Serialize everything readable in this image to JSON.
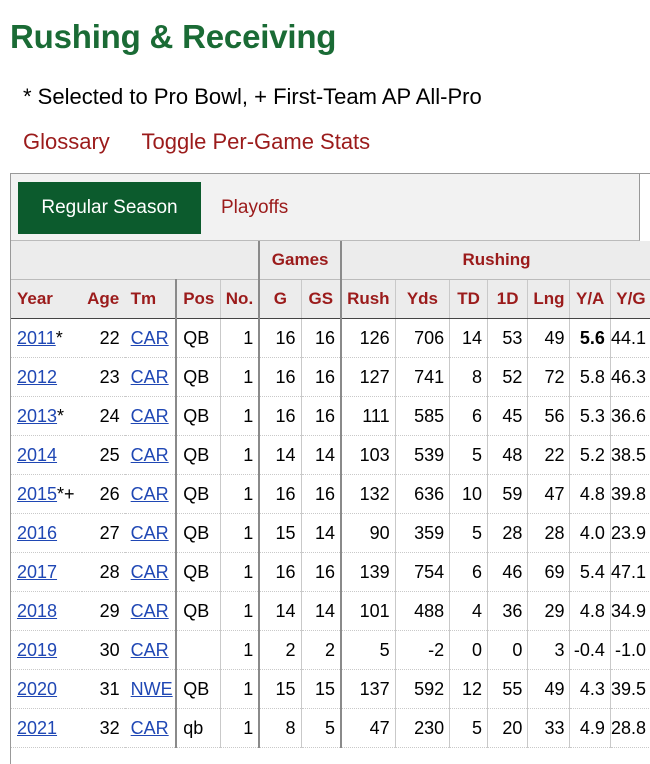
{
  "page": {
    "title": "Rushing & Receiving",
    "note": "* Selected to Pro Bowl, + First-Team AP All-Pro",
    "links": [
      "Glossary",
      "Toggle Per-Game Stats"
    ]
  },
  "tabs": {
    "regular": "Regular Season",
    "playoffs": "Playoffs"
  },
  "table": {
    "over_headers": {
      "games": "Games",
      "rushing": "Rushing"
    },
    "headers": [
      "Year",
      "Age",
      "Tm",
      "Pos",
      "No.",
      "G",
      "GS",
      "Rush",
      "Yds",
      "TD",
      "1D",
      "Lng",
      "Y/A",
      "Y/G"
    ],
    "rows": [
      {
        "year": "2011",
        "mark": "*",
        "age": "22",
        "tm": "CAR",
        "pos": "QB",
        "no": "1",
        "g": "16",
        "gs": "16",
        "rush": "126",
        "yds": "706",
        "td": "14",
        "fd": "53",
        "lng": "49",
        "ya": "5.6",
        "yg": "44.1"
      },
      {
        "year": "2012",
        "mark": "",
        "age": "23",
        "tm": "CAR",
        "pos": "QB",
        "no": "1",
        "g": "16",
        "gs": "16",
        "rush": "127",
        "yds": "741",
        "td": "8",
        "fd": "52",
        "lng": "72",
        "ya": "5.8",
        "yg": "46.3"
      },
      {
        "year": "2013",
        "mark": "*",
        "age": "24",
        "tm": "CAR",
        "pos": "QB",
        "no": "1",
        "g": "16",
        "gs": "16",
        "rush": "111",
        "yds": "585",
        "td": "6",
        "fd": "45",
        "lng": "56",
        "ya": "5.3",
        "yg": "36.6"
      },
      {
        "year": "2014",
        "mark": "",
        "age": "25",
        "tm": "CAR",
        "pos": "QB",
        "no": "1",
        "g": "14",
        "gs": "14",
        "rush": "103",
        "yds": "539",
        "td": "5",
        "fd": "48",
        "lng": "22",
        "ya": "5.2",
        "yg": "38.5"
      },
      {
        "year": "2015",
        "mark": "*+",
        "age": "26",
        "tm": "CAR",
        "pos": "QB",
        "no": "1",
        "g": "16",
        "gs": "16",
        "rush": "132",
        "yds": "636",
        "td": "10",
        "fd": "59",
        "lng": "47",
        "ya": "4.8",
        "yg": "39.8"
      },
      {
        "year": "2016",
        "mark": "",
        "age": "27",
        "tm": "CAR",
        "pos": "QB",
        "no": "1",
        "g": "15",
        "gs": "14",
        "rush": "90",
        "yds": "359",
        "td": "5",
        "fd": "28",
        "lng": "28",
        "ya": "4.0",
        "yg": "23.9"
      },
      {
        "year": "2017",
        "mark": "",
        "age": "28",
        "tm": "CAR",
        "pos": "QB",
        "no": "1",
        "g": "16",
        "gs": "16",
        "rush": "139",
        "yds": "754",
        "td": "6",
        "fd": "46",
        "lng": "69",
        "ya": "5.4",
        "yg": "47.1"
      },
      {
        "year": "2018",
        "mark": "",
        "age": "29",
        "tm": "CAR",
        "pos": "QB",
        "no": "1",
        "g": "14",
        "gs": "14",
        "rush": "101",
        "yds": "488",
        "td": "4",
        "fd": "36",
        "lng": "29",
        "ya": "4.8",
        "yg": "34.9"
      },
      {
        "year": "2019",
        "mark": "",
        "age": "30",
        "tm": "CAR",
        "pos": "",
        "no": "1",
        "g": "2",
        "gs": "2",
        "rush": "5",
        "yds": "-2",
        "td": "0",
        "fd": "0",
        "lng": "3",
        "ya": "-0.4",
        "yg": "-1.0"
      },
      {
        "year": "2020",
        "mark": "",
        "age": "31",
        "tm": "NWE",
        "pos": "QB",
        "no": "1",
        "g": "15",
        "gs": "15",
        "rush": "137",
        "yds": "592",
        "td": "12",
        "fd": "55",
        "lng": "49",
        "ya": "4.3",
        "yg": "39.5"
      },
      {
        "year": "2021",
        "mark": "",
        "age": "32",
        "tm": "CAR",
        "pos": "qb",
        "no": "1",
        "g": "8",
        "gs": "5",
        "rush": "47",
        "yds": "230",
        "td": "5",
        "fd": "20",
        "lng": "33",
        "ya": "4.9",
        "yg": "28.8"
      }
    ]
  },
  "colors": {
    "title_green": "#1a6b35",
    "tab_active": "#0c5b2d",
    "link_red": "#9b1b1b",
    "link_blue": "#1f47b4"
  }
}
